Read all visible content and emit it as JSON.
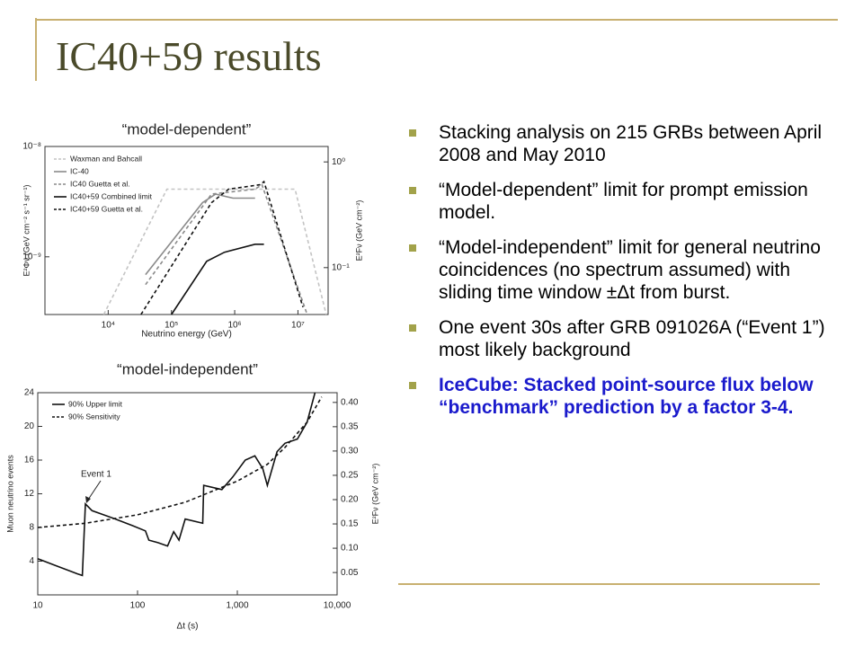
{
  "slide": {
    "title": "IC40+59 results",
    "bullets": [
      "Stacking analysis on 215 GRBs between April 2008 and May 2010",
      "“Model-dependent” limit for prompt emission model.",
      "“Model-independent” limit for general neutrino coincidences (no spectrum assumed) with sliding time window ±Δt from burst.",
      "One event 30s after GRB 091026A (“Event 1”) most likely background",
      "IceCube: Stacked point-source flux below  “benchmark” prediction by a factor 3-4."
    ]
  },
  "chart_data": [
    {
      "type": "line",
      "title": "“model-dependent”",
      "x_label": "Neutrino energy (GeV)",
      "y_label": "E²Φν (GeV cm⁻² s⁻¹ sr⁻¹)",
      "y2_label": "E²Fν (GeV cm⁻²)",
      "log_x": true,
      "log_y": true,
      "xlim": [
        1000,
        30000000
      ],
      "ylim": [
        3e-10,
        1e-08
      ],
      "y2lim": [
        0.036,
        1.4
      ],
      "xticks": [
        {
          "value": 10000,
          "label": "10⁴"
        },
        {
          "value": 100000,
          "label": "10⁵"
        },
        {
          "value": 1000000,
          "label": "10⁶"
        },
        {
          "value": 10000000,
          "label": "10⁷"
        }
      ],
      "yticks": [
        {
          "value": 1e-08,
          "label": "10⁻⁸"
        },
        {
          "value": 1e-09,
          "label": "10⁻⁹"
        }
      ],
      "y2ticks": [
        {
          "value": 1,
          "label": "10⁰"
        },
        {
          "value": 0.1,
          "label": "10⁻¹"
        }
      ],
      "series": [
        {
          "name": "Waxman and Bahcall",
          "color": "#c4c4c4",
          "dash": true,
          "x": [
            8500,
            85000,
            9000000,
            28000000
          ],
          "values": [
            3e-10,
            4.1e-09,
            4.1e-09,
            3e-10
          ]
        },
        {
          "name": "IC-40",
          "color": "#8a8a8a",
          "dash": false,
          "x": [
            39000,
            310000,
            500000,
            940000,
            2100000
          ],
          "values": [
            6.9e-10,
            3.1e-09,
            3.7e-09,
            3.4e-09,
            3.4e-09
          ]
        },
        {
          "name": "IC40 Guetta et al.",
          "color": "#8a8a8a",
          "dash": true,
          "x": [
            39000,
            430000,
            2100000,
            2700000,
            14000000
          ],
          "values": [
            5.6e-10,
            3.7e-09,
            4.1e-09,
            4.5e-09,
            3e-10
          ]
        },
        {
          "name": "IC40+59 Combined limit",
          "color": "#111111",
          "dash": false,
          "x": [
            100000,
            360000,
            690000,
            2100000,
            2900000
          ],
          "values": [
            3e-10,
            9.1e-10,
            1.1e-09,
            1.3e-09,
            1.3e-09
          ]
        },
        {
          "name": "IC40+59 Guetta et al.",
          "color": "#111111",
          "dash": true,
          "x": [
            33000,
            430000,
            800000,
            2500000,
            2900000,
            12000000
          ],
          "values": [
            3e-10,
            3.1e-09,
            4.1e-09,
            4.5e-09,
            4.8e-09,
            3.5e-10
          ]
        }
      ]
    },
    {
      "type": "line",
      "title": "“model-independent”",
      "x_label": "Δt (s)",
      "y_label": "Muon neutrino events",
      "y2_label": "E²Fν (GeV cm⁻²)",
      "log_x": true,
      "log_y": false,
      "annotation": "Event 1",
      "xlim": [
        10,
        10000
      ],
      "ylim": [
        0,
        24
      ],
      "y2lim": [
        0.004,
        0.42
      ],
      "xticks": [
        10,
        100,
        {
          "value": 1000,
          "label": "1,000"
        },
        {
          "value": 10000,
          "label": "10,000"
        }
      ],
      "yticks": [
        4,
        8,
        12,
        16,
        20,
        24
      ],
      "y2ticks": [
        0.05,
        {
          "value": 0.1,
          "label": "0.10"
        },
        0.15,
        {
          "value": 0.2,
          "label": "0.20"
        },
        0.25,
        {
          "value": 0.3,
          "label": "0.30"
        },
        0.35,
        {
          "value": 0.4,
          "label": "0.40"
        }
      ],
      "series": [
        {
          "name": "90% Upper limit",
          "color": "#111111",
          "dash": false,
          "x": [
            10,
            15,
            25,
            28,
            30,
            35,
            60,
            90,
            120,
            130,
            160,
            200,
            230,
            260,
            300,
            450,
            460,
            700,
            900,
            1200,
            1500,
            1800,
            2000,
            2500,
            3000,
            4000,
            5000,
            6000
          ],
          "values": [
            4.3,
            3.5,
            2.5,
            2.3,
            10.8,
            10,
            9,
            8.2,
            7.6,
            6.5,
            6.2,
            5.8,
            7.5,
            6.5,
            9,
            8.5,
            13,
            12.5,
            14,
            16,
            16.5,
            15,
            13,
            17,
            18,
            18.5,
            20.5,
            24
          ]
        },
        {
          "name": "90% Sensitivity",
          "color": "#111111",
          "dash": true,
          "x": [
            10,
            30,
            100,
            300,
            1000,
            2000,
            3000,
            5000,
            7000
          ],
          "values": [
            8,
            8.5,
            9.5,
            11,
            13.5,
            15.5,
            17.5,
            20.5,
            23.5
          ]
        }
      ]
    }
  ]
}
